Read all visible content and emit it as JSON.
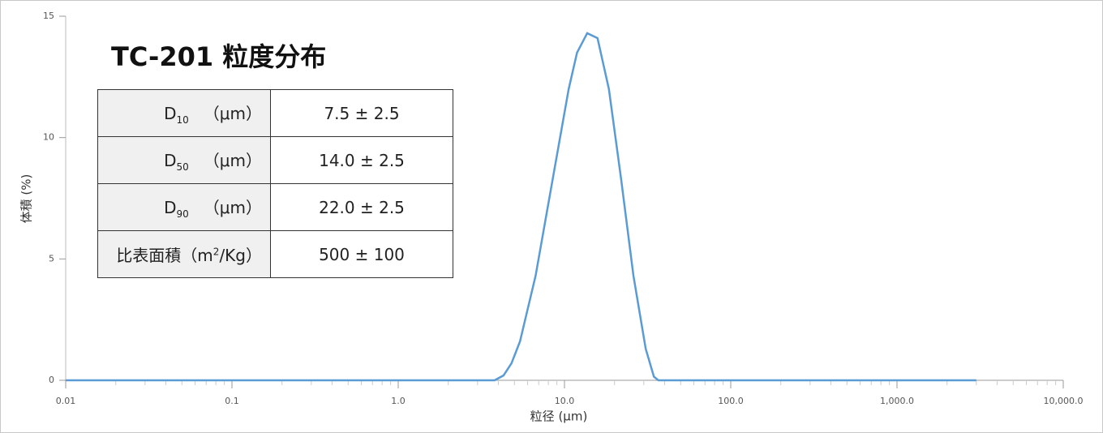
{
  "chart_data": {
    "type": "line",
    "title": "TC-201 粒度分布",
    "x_label": "粒径 (μm)",
    "y_label": "体積 (%)",
    "x": [
      0.01,
      3.8,
      4.3,
      4.8,
      5.4,
      6.7,
      8.5,
      10.6,
      11.9,
      13.7,
      15.8,
      18.5,
      21.9,
      26,
      30.8,
      34.5,
      36.7,
      3000
    ],
    "values": [
      0,
      0,
      0.2,
      0.7,
      1.6,
      4.3,
      8.3,
      12.0,
      13.5,
      14.3,
      14.1,
      12.0,
      8.3,
      4.3,
      1.3,
      0.15,
      0,
      0
    ],
    "color": "#5b9bd5",
    "xscale": "log",
    "xlim": [
      0.01,
      10000
    ],
    "ylim": [
      0,
      15
    ],
    "xticks": [
      0.01,
      0.1,
      {
        "value": 1,
        "label": "1.0"
      },
      {
        "value": 10,
        "label": "10.0"
      },
      {
        "value": 100,
        "label": "100.0"
      },
      {
        "value": 1000,
        "label": "1,000.0"
      },
      {
        "value": 10000,
        "label": "10,000.0"
      }
    ],
    "yticks": [
      0,
      5,
      10,
      15
    ]
  },
  "table": {
    "rows": [
      {
        "label": "D",
        "sub": "10",
        "unit": "（μm）",
        "value": "7.5 ± 2.5"
      },
      {
        "label": "D",
        "sub": "50",
        "unit": "（μm）",
        "value": "14.0 ± 2.5"
      },
      {
        "label": "D",
        "sub": "90",
        "unit": "（μm）",
        "value": "22.0 ± 2.5"
      },
      {
        "label": "比表面積（m",
        "sup": "2",
        "unit": "/Kg）",
        "value": "500 ± 100"
      }
    ]
  }
}
